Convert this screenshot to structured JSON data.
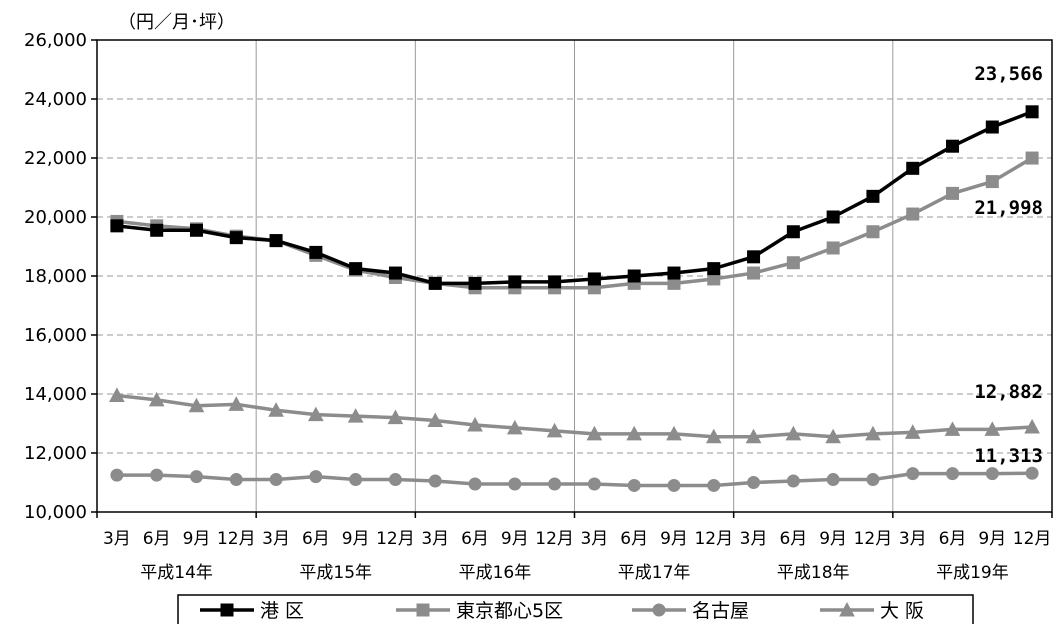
{
  "chart_data": {
    "type": "line",
    "unit_label": "（円／月･坪）",
    "ylim": [
      10000,
      26000
    ],
    "yticks": [
      "26,000",
      "24,000",
      "22,000",
      "20,000",
      "18,000",
      "16,000",
      "14,000",
      "12,000",
      "10,000"
    ],
    "ytick_values": [
      26000,
      24000,
      22000,
      20000,
      18000,
      16000,
      14000,
      12000,
      10000
    ],
    "month_labels": [
      "3月",
      "6月",
      "9月",
      "12月",
      "3月",
      "6月",
      "9月",
      "12月",
      "3月",
      "6月",
      "9月",
      "12月",
      "3月",
      "6月",
      "9月",
      "12月",
      "3月",
      "6月",
      "9月",
      "12月",
      "3月",
      "6月",
      "9月",
      "12月"
    ],
    "year_labels": [
      "平成14年",
      "平成15年",
      "平成16年",
      "平成17年",
      "平成18年",
      "平成19年"
    ],
    "grid": "horizontal dashed, vertical year separators",
    "legend_position": "bottom",
    "series": [
      {
        "name": "港 区",
        "color": "#000000",
        "marker": "square",
        "values": [
          19700,
          19550,
          19550,
          19300,
          19200,
          18800,
          18250,
          18100,
          17750,
          17750,
          17800,
          17800,
          17900,
          18000,
          18100,
          18250,
          18650,
          19500,
          20000,
          20700,
          21650,
          22400,
          23050,
          23566
        ]
      },
      {
        "name": "東京都心5区",
        "color": "#8c8c8c",
        "marker": "square",
        "values": [
          19850,
          19700,
          19600,
          19350,
          19200,
          18700,
          18200,
          17950,
          17750,
          17600,
          17600,
          17600,
          17600,
          17750,
          17750,
          17900,
          18100,
          18450,
          18950,
          19500,
          20100,
          20800,
          21200,
          21998
        ]
      },
      {
        "name": "名古屋",
        "color": "#8c8c8c",
        "marker": "circle",
        "values": [
          11250,
          11250,
          11200,
          11100,
          11100,
          11200,
          11100,
          11100,
          11050,
          10950,
          10950,
          10950,
          10950,
          10900,
          10900,
          10900,
          11000,
          11050,
          11100,
          11100,
          11300,
          11300,
          11300,
          11313
        ]
      },
      {
        "name": "大 阪",
        "color": "#8c8c8c",
        "marker": "triangle",
        "values": [
          13950,
          13800,
          13600,
          13650,
          13450,
          13300,
          13250,
          13200,
          13100,
          12950,
          12850,
          12750,
          12650,
          12650,
          12650,
          12550,
          12550,
          12650,
          12550,
          12650,
          12700,
          12800,
          12800,
          12882
        ]
      }
    ],
    "data_labels": [
      {
        "series": "港 区",
        "text": "23,566"
      },
      {
        "series": "東京都心5区",
        "text": "21,998"
      },
      {
        "series": "大 阪",
        "text": "12,882"
      },
      {
        "series": "名古屋",
        "text": "11,313"
      }
    ]
  }
}
